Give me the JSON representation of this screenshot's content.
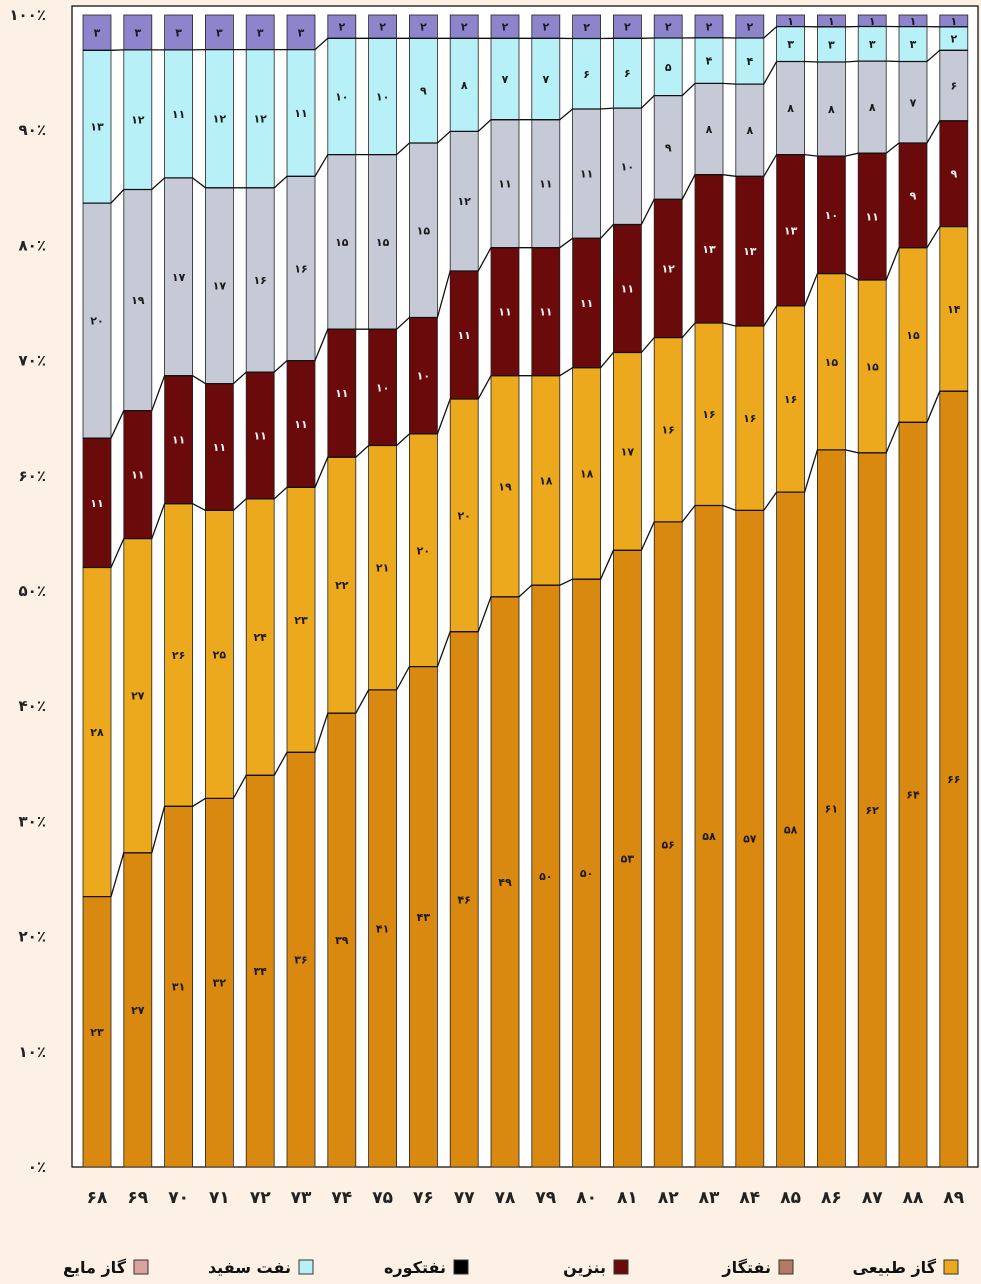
{
  "chart_data": {
    "type": "bar",
    "stacked": true,
    "percent": true,
    "title": "",
    "xlabel": "",
    "ylabel": "",
    "ylim": [
      0,
      100
    ],
    "yticks": [
      "۰٪",
      "۱۰٪",
      "۲۰٪",
      "۳۰٪",
      "۴۰٪",
      "۵۰٪",
      "۶۰٪",
      "۷۰٪",
      "۸۰٪",
      "۹۰٪",
      "۱۰۰٪"
    ],
    "categories": [
      "۶۸",
      "۶۹",
      "۷۰",
      "۷۱",
      "۷۲",
      "۷۳",
      "۷۴",
      "۷۵",
      "۷۶",
      "۷۷",
      "۷۸",
      "۷۹",
      "۸۰",
      "۸۱",
      "۸۲",
      "۸۳",
      "۸۴",
      "۸۵",
      "۸۶",
      "۸۷",
      "۸۸",
      "۸۹"
    ],
    "legend_position": "bottom",
    "series": [
      {
        "name": "گاز طبیعی",
        "color": "#d9890f",
        "values": [
          23,
          27,
          31,
          32,
          34,
          36,
          39,
          41,
          43,
          46,
          49,
          50,
          50,
          53,
          56,
          58,
          57,
          58,
          61,
          62,
          64,
          66
        ],
        "labels": [
          "۲۳",
          "۲۷",
          "۳۱",
          "۳۲",
          "۳۴",
          "۳۶",
          "۳۹",
          "۴۱",
          "۴۳",
          "۴۶",
          "۴۹",
          "۵۰",
          "۵۰",
          "۵۳",
          "۵۶",
          "۵۸",
          "۵۷",
          "۵۸",
          "۶۱",
          "۶۲",
          "۶۴",
          "۶۶"
        ]
      },
      {
        "name": "نفتگاز",
        "color": "#eda91d",
        "values": [
          28,
          27,
          26,
          25,
          24,
          23,
          22,
          21,
          20,
          20,
          19,
          18,
          18,
          17,
          16,
          16,
          16,
          16,
          15,
          15,
          15,
          14
        ],
        "labels": [
          "۲۸",
          "۲۷",
          "۲۶",
          "۲۵",
          "۲۴",
          "۲۳",
          "۲۲",
          "۲۱",
          "۲۰",
          "۲۰",
          "۱۹",
          "۱۸",
          "۱۸",
          "۱۷",
          "۱۶",
          "۱۶",
          "۱۶",
          "۱۶",
          "۱۵",
          "۱۵",
          "۱۵",
          "۱۴"
        ]
      },
      {
        "name": "بنزین",
        "color": "#6b0a0a",
        "values": [
          11,
          11,
          11,
          11,
          11,
          11,
          11,
          10,
          10,
          11,
          11,
          11,
          11,
          11,
          12,
          13,
          13,
          13,
          10,
          11,
          9,
          9
        ],
        "labels": [
          "۱۱",
          "۱۱",
          "۱۱",
          "۱۱",
          "۱۱",
          "۱۱",
          "۱۱",
          "۱۰",
          "۱۰",
          "۱۱",
          "۱۱",
          "۱۱",
          "۱۱",
          "۱۱",
          "۱۲",
          "۱۳",
          "۱۳",
          "۱۳",
          "۱۰",
          "۱۱",
          "۹",
          "۹"
        ]
      },
      {
        "name": "نفتکوره",
        "color": "#c6cad6",
        "values": [
          20,
          19,
          17,
          17,
          16,
          16,
          15,
          15,
          15,
          12,
          11,
          11,
          11,
          10,
          9,
          8,
          8,
          8,
          8,
          8,
          7,
          6
        ],
        "labels": [
          "۲۰",
          "۱۹",
          "۱۷",
          "۱۷",
          "۱۶",
          "۱۶",
          "۱۵",
          "۱۵",
          "۱۵",
          "۱۲",
          "۱۱",
          "۱۱",
          "۱۱",
          "۱۰",
          "۹",
          "۸",
          "۸",
          "۸",
          "۸",
          "۸",
          "۷",
          "۶"
        ]
      },
      {
        "name": "نفت سفید",
        "color": "#b8f0f7",
        "values": [
          13,
          12,
          11,
          12,
          12,
          11,
          10,
          10,
          9,
          8,
          7,
          7,
          6,
          6,
          5,
          4,
          4,
          3,
          3,
          3,
          3,
          2
        ],
        "labels": [
          "۱۳",
          "۱۲",
          "۱۱",
          "۱۲",
          "۱۲",
          "۱۱",
          "۱۰",
          "۱۰",
          "۹",
          "۸",
          "۷",
          "۷",
          "۶",
          "۶",
          "۵",
          "۴",
          "۴",
          "۳",
          "۳",
          "۳",
          "۳",
          "۲"
        ]
      },
      {
        "name": "گاز مایع",
        "color": "#8d84cc",
        "values": [
          3,
          3,
          3,
          3,
          3,
          3,
          2,
          2,
          2,
          2,
          2,
          2,
          2,
          2,
          2,
          2,
          2,
          1,
          1,
          1,
          1,
          1
        ],
        "labels": [
          "۳",
          "۳",
          "۳",
          "۳",
          "۳",
          "۳",
          "۲",
          "۲",
          "۲",
          "۲",
          "۲",
          "۲",
          "۲",
          "۲",
          "۲",
          "۲",
          "۲",
          "۱",
          "۱",
          "۱",
          "۱",
          "۱"
        ]
      }
    ],
    "legend": [
      {
        "label": "گاز طبیعی",
        "swatch": "#eda91d"
      },
      {
        "label": "نفتگاز",
        "swatch": "#b57a63"
      },
      {
        "label": "بنزین",
        "swatch": "#6b0a0a"
      },
      {
        "label": "نفتکوره",
        "swatch": "#000000"
      },
      {
        "label": "نفت سفید",
        "swatch": "#b8f0f7"
      },
      {
        "label": "گاز مایع",
        "swatch": "#d9a3a0"
      }
    ]
  }
}
